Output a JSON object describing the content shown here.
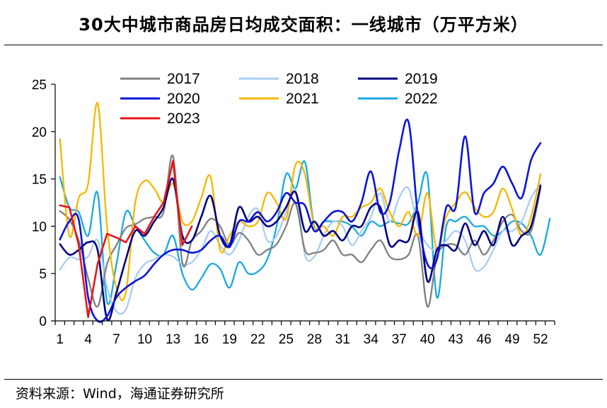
{
  "title": "30大中城市商品房日均成交面积：一线城市（万平方米）",
  "source": "资料来源：Wind，海通证券研究所",
  "chart_data": {
    "type": "line",
    "title": "30大中城市商品房日均成交面积：一线城市（万平方米）",
    "xlabel": "",
    "ylabel": "",
    "xlim": [
      1,
      53
    ],
    "ylim": [
      0,
      25
    ],
    "yticks": [
      0,
      5,
      10,
      15,
      20,
      25
    ],
    "xticks": [
      1,
      4,
      7,
      10,
      13,
      16,
      19,
      22,
      25,
      28,
      31,
      34,
      37,
      40,
      43,
      46,
      49,
      52
    ],
    "grid": false,
    "legend_position": "top",
    "series": [
      {
        "name": "2017",
        "color": "#808080",
        "x": [
          1,
          2,
          3,
          4,
          5,
          6,
          7,
          8,
          9,
          10,
          11,
          12,
          13,
          14,
          15,
          16,
          17,
          18,
          19,
          20,
          21,
          22,
          23,
          24,
          25,
          26,
          27,
          28,
          29,
          30,
          31,
          32,
          33,
          34,
          35,
          36,
          37,
          38,
          39,
          40,
          41,
          42,
          43,
          44,
          45,
          46,
          47,
          48,
          49,
          50,
          51,
          52
        ],
        "values": [
          11.6,
          10.7,
          8.5,
          4.5,
          1.5,
          6.0,
          8.0,
          9.8,
          10.2,
          10.8,
          11.0,
          11.5,
          17.4,
          6.1,
          8.5,
          9.5,
          10.8,
          10.0,
          8.0,
          9.3,
          8.5,
          7.0,
          7.5,
          8.1,
          10.0,
          12.4,
          7.5,
          7.2,
          7.5,
          8.5,
          7.0,
          7.0,
          6.2,
          7.5,
          8.5,
          6.8,
          6.5,
          7.0,
          9.0,
          1.5,
          6.8,
          8.0,
          8.0,
          7.0,
          8.5,
          7.0,
          8.5,
          10.5,
          11.2,
          9.5,
          9.5,
          14.0
        ]
      },
      {
        "name": "2018",
        "color": "#a9cdf5",
        "x": [
          1,
          2,
          3,
          4,
          5,
          6,
          7,
          8,
          9,
          10,
          11,
          12,
          13,
          14,
          15,
          16,
          17,
          18,
          19,
          20,
          21,
          22,
          23,
          24,
          25,
          26,
          27,
          28,
          29,
          30,
          31,
          32,
          33,
          34,
          35,
          36,
          37,
          38,
          39,
          40,
          41,
          42,
          43,
          44,
          45,
          46,
          47,
          48,
          49,
          50,
          51,
          52
        ],
        "values": [
          5.4,
          6.7,
          6.5,
          6.8,
          8.5,
          3.5,
          1.0,
          1.2,
          4.5,
          6.0,
          6.5,
          7.0,
          6.8,
          6.0,
          6.2,
          7.5,
          9.5,
          8.0,
          7.0,
          8.5,
          11.0,
          11.8,
          8.5,
          9.0,
          11.5,
          13.8,
          7.0,
          6.8,
          9.0,
          10.5,
          10.0,
          8.0,
          9.5,
          11.0,
          13.5,
          10.5,
          13.0,
          14.0,
          10.0,
          8.0,
          7.5,
          8.5,
          9.5,
          8.5,
          5.5,
          5.7,
          7.5,
          9.5,
          9.5,
          10.5,
          13.0,
          14.5
        ]
      },
      {
        "name": "2019",
        "color": "#000080",
        "x": [
          1,
          2,
          3,
          4,
          5,
          6,
          7,
          8,
          9,
          10,
          11,
          12,
          13,
          14,
          15,
          16,
          17,
          18,
          19,
          20,
          21,
          22,
          23,
          24,
          25,
          26,
          27,
          28,
          29,
          30,
          31,
          32,
          33,
          34,
          35,
          36,
          37,
          38,
          39,
          40,
          41,
          42,
          43,
          44,
          45,
          46,
          47,
          48,
          49,
          50,
          51,
          52
        ],
        "values": [
          8.1,
          7.0,
          7.5,
          8.3,
          7.5,
          0.2,
          3.0,
          6.5,
          9.5,
          9.0,
          10.5,
          12.0,
          15.0,
          9.0,
          8.5,
          11.0,
          13.2,
          9.0,
          8.0,
          12.0,
          10.5,
          11.0,
          10.0,
          10.5,
          12.0,
          13.6,
          9.5,
          10.5,
          9.0,
          9.5,
          8.5,
          10.0,
          10.0,
          12.0,
          12.0,
          8.0,
          8.5,
          8.5,
          11.5,
          4.2,
          7.5,
          8.0,
          7.5,
          10.3,
          8.0,
          9.5,
          8.0,
          11.0,
          8.0,
          9.0,
          10.0,
          14.3
        ]
      },
      {
        "name": "2020",
        "color": "#0a14d9",
        "x": [
          1,
          2,
          3,
          4,
          5,
          6,
          7,
          8,
          9,
          10,
          11,
          12,
          13,
          14,
          15,
          16,
          17,
          18,
          19,
          20,
          21,
          22,
          23,
          24,
          25,
          26,
          27,
          28,
          29,
          30,
          31,
          32,
          33,
          34,
          35,
          36,
          37,
          38,
          39,
          40,
          41,
          42,
          43,
          44,
          45,
          46,
          47,
          48,
          49,
          50,
          51,
          52
        ],
        "values": [
          8.6,
          10.5,
          10.7,
          2.5,
          0.0,
          0.5,
          2.5,
          3.5,
          4.2,
          4.8,
          6.0,
          7.0,
          7.5,
          7.5,
          7.2,
          7.5,
          8.5,
          9.0,
          7.8,
          10.5,
          10.5,
          11.5,
          10.5,
          11.5,
          13.5,
          12.5,
          12.2,
          9.5,
          10.5,
          11.5,
          11.5,
          10.5,
          12.5,
          15.8,
          11.5,
          12.5,
          18.0,
          21.0,
          11.0,
          6.0,
          6.5,
          12.0,
          12.0,
          19.5,
          11.5,
          13.5,
          14.5,
          16.3,
          14.5,
          13.0,
          17.0,
          18.8
        ]
      },
      {
        "name": "2021",
        "color": "#f5b700",
        "x": [
          1,
          2,
          3,
          4,
          5,
          6,
          7,
          8,
          9,
          10,
          11,
          12,
          13,
          14,
          15,
          16,
          17,
          18,
          19,
          20,
          21,
          22,
          23,
          24,
          25,
          26,
          27,
          28,
          29,
          30,
          31,
          32,
          33,
          34,
          35,
          36,
          37,
          38,
          39,
          40,
          41,
          42,
          43,
          44,
          45,
          46,
          47,
          48,
          49,
          50,
          51,
          52
        ],
        "values": [
          19.2,
          9.0,
          13.0,
          14.5,
          23.0,
          10.0,
          3.5,
          3.0,
          12.5,
          14.8,
          14.0,
          12.5,
          14.5,
          10.5,
          10.5,
          13.0,
          15.2,
          7.5,
          9.0,
          10.5,
          10.0,
          10.5,
          13.5,
          12.5,
          10.8,
          16.5,
          15.5,
          10.0,
          10.0,
          9.0,
          11.0,
          11.0,
          12.0,
          12.5,
          14.0,
          11.5,
          10.0,
          11.5,
          9.0,
          13.5,
          7.5,
          11.0,
          12.5,
          13.6,
          12.0,
          11.0,
          11.5,
          14.0,
          11.8,
          9.0,
          11.0,
          15.5
        ]
      },
      {
        "name": "2022",
        "color": "#1aa9e0",
        "x": [
          1,
          2,
          3,
          4,
          5,
          6,
          7,
          8,
          9,
          10,
          11,
          12,
          13,
          14,
          15,
          16,
          17,
          18,
          19,
          20,
          21,
          22,
          23,
          24,
          25,
          26,
          27,
          28,
          29,
          30,
          31,
          32,
          33,
          34,
          35,
          36,
          37,
          38,
          39,
          40,
          41,
          42,
          43,
          44,
          45,
          46,
          47,
          48,
          49,
          50,
          51,
          52,
          53
        ],
        "values": [
          15.2,
          12.0,
          11.5,
          9.0,
          13.5,
          2.0,
          6.0,
          11.5,
          10.0,
          8.5,
          7.2,
          7.0,
          9.0,
          5.0,
          3.3,
          4.5,
          6.0,
          5.5,
          3.5,
          6.2,
          5.0,
          5.2,
          6.5,
          10.0,
          15.5,
          14.0,
          16.8,
          10.0,
          10.5,
          10.5,
          10.5,
          10.0,
          9.0,
          10.5,
          10.0,
          10.5,
          10.3,
          10.3,
          12.5,
          15.3,
          2.5,
          10.0,
          10.5,
          11.0,
          10.0,
          10.0,
          9.0,
          9.5,
          10.5,
          10.3,
          9.0,
          7.0,
          10.8
        ]
      },
      {
        "name": "2023",
        "color": "#e8151b",
        "x": [
          1,
          2,
          3,
          4,
          5,
          6,
          7,
          8,
          9,
          10,
          11,
          12,
          13,
          14,
          15
        ],
        "values": [
          12.2,
          12.0,
          8.0,
          0.4,
          6.0,
          9.2,
          8.8,
          8.3,
          10.0,
          9.2,
          11.0,
          12.5,
          16.9,
          8.0,
          10.0
        ]
      }
    ]
  }
}
